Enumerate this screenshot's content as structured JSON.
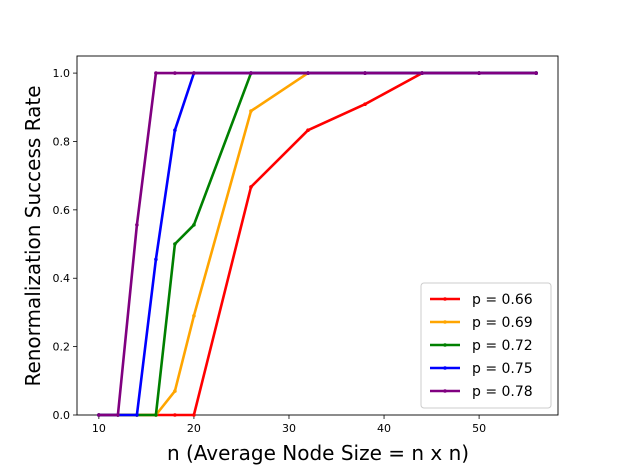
{
  "chart_data": {
    "type": "line",
    "title": "",
    "xlabel": "n (Average Node Size = n x n)",
    "ylabel": "Renormalization Success Rate",
    "xlim": [
      7.7,
      58.3
    ],
    "ylim": [
      0.0,
      1.05
    ],
    "xticks": [
      10,
      20,
      30,
      40,
      50
    ],
    "yticks": [
      0.0,
      0.2,
      0.4,
      0.6,
      0.8,
      1.0
    ],
    "xtick_labels": [
      "10",
      "20",
      "30",
      "40",
      "50"
    ],
    "ytick_labels": [
      "0.0",
      "0.2",
      "0.4",
      "0.6",
      "0.8",
      "1.0"
    ],
    "grid": false,
    "legend_position": "bottom-right",
    "series": [
      {
        "name": "p = 0.66",
        "color": "#ff0000",
        "x": [
          10,
          12,
          14,
          16,
          18,
          20,
          26,
          32,
          38,
          44,
          50,
          56
        ],
        "y": [
          0,
          0,
          0,
          0,
          0,
          0,
          0.667,
          0.833,
          0.909,
          1.0,
          1.0,
          1.0
        ]
      },
      {
        "name": "p = 0.69",
        "color": "#ffa500",
        "x": [
          10,
          12,
          14,
          16,
          18,
          20,
          26,
          32,
          38,
          44,
          50,
          56
        ],
        "y": [
          0,
          0,
          0,
          0,
          0.07,
          0.29,
          0.889,
          1.0,
          1.0,
          1.0,
          1.0,
          1.0
        ]
      },
      {
        "name": "p = 0.72",
        "color": "#008000",
        "x": [
          10,
          12,
          14,
          16,
          18,
          20,
          26,
          32,
          38,
          44,
          50,
          56
        ],
        "y": [
          0,
          0,
          0,
          0,
          0.5,
          0.556,
          1.0,
          1.0,
          1.0,
          1.0,
          1.0,
          1.0
        ]
      },
      {
        "name": "p = 0.75",
        "color": "#0000ff",
        "x": [
          10,
          12,
          14,
          16,
          18,
          20,
          26,
          32,
          38,
          44,
          50,
          56
        ],
        "y": [
          0,
          0,
          0,
          0.455,
          0.833,
          1.0,
          1.0,
          1.0,
          1.0,
          1.0,
          1.0,
          1.0
        ]
      },
      {
        "name": "p = 0.78",
        "color": "#800080",
        "x": [
          10,
          12,
          14,
          16,
          18,
          20,
          26,
          32,
          38,
          44,
          50,
          56
        ],
        "y": [
          0,
          0,
          0.556,
          1.0,
          1.0,
          1.0,
          1.0,
          1.0,
          1.0,
          1.0,
          1.0,
          1.0
        ]
      }
    ]
  }
}
